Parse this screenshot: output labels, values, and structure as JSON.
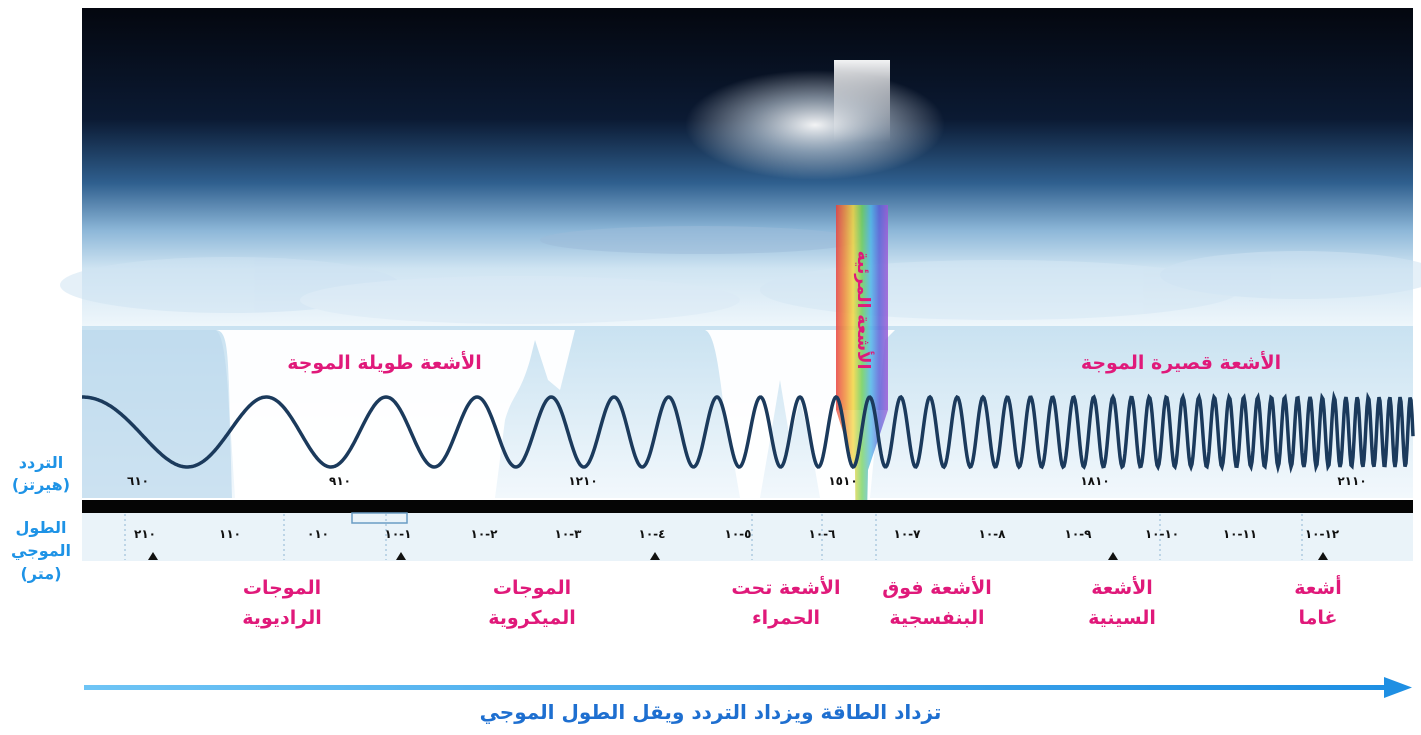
{
  "side_labels": {
    "frequency": "التردد",
    "frequency_unit": "(هيرتز)",
    "wavelength_line1": "الطول",
    "wavelength_line2": "الموجي",
    "wavelength_unit": "(متر)"
  },
  "bands": {
    "long_wave": "الأشعة طويلة الموجة",
    "short_wave": "الأشعة قصيرة الموجة",
    "visible": "الأشعة المرئية"
  },
  "frequency_ticks": [
    "٦١٠",
    "٩١٠",
    "١٢١٠",
    "١٥١٠",
    "١٨١٠",
    "٢١١٠"
  ],
  "wavelength_ticks": [
    "٢١٠",
    "١١٠",
    "٠١٠",
    "١-١٠",
    "٢-١٠",
    "٣-١٠",
    "٤-١٠",
    "٥-١٠",
    "٦-١٠",
    "٧-١٠",
    "٨-١٠",
    "٩-١٠",
    "١٠-١٠",
    "١١-١٠",
    "١٢-١٠"
  ],
  "regions": [
    {
      "line1": "الموجات",
      "line2": "الراديوية"
    },
    {
      "line1": "الموجات",
      "line2": "الميكروية"
    },
    {
      "line1": "الأشعة تحت",
      "line2": "الحمراء"
    },
    {
      "line1": "الأشعة فوق",
      "line2": "البنفسجية"
    },
    {
      "line1": "الأشعة",
      "line2": "السينية"
    },
    {
      "line1": "أشعة",
      "line2": "غاما"
    }
  ],
  "caption": "تزداد الطاقة ويزداد التردد ويقل الطول الموجي",
  "colors": {
    "label_pink": "#e0197a",
    "side_blue": "#1e93e6",
    "arrow_blue": "#1e8fe3",
    "wave": "#1b3a5c"
  }
}
